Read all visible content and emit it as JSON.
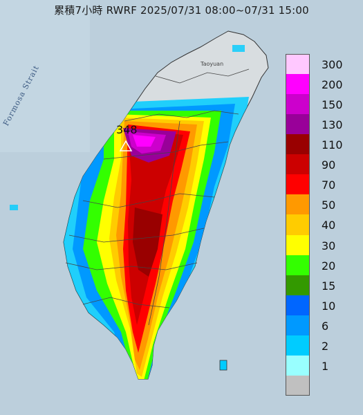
{
  "title": "累積7小時 RWRF 2025/07/31 08:00~07/31 15:00",
  "strait_label": "Formosa Strait",
  "place_label": "Taoyuan",
  "max_value": "348",
  "legend": {
    "items": [
      {
        "label": "300",
        "color": "#ffc8ff"
      },
      {
        "label": "200",
        "color": "#ff00ff"
      },
      {
        "label": "150",
        "color": "#cc00cc"
      },
      {
        "label": "130",
        "color": "#990099"
      },
      {
        "label": "110",
        "color": "#990000"
      },
      {
        "label": "90",
        "color": "#cc0000"
      },
      {
        "label": "70",
        "color": "#ff0000"
      },
      {
        "label": "50",
        "color": "#ff9900"
      },
      {
        "label": "40",
        "color": "#ffcc00"
      },
      {
        "label": "30",
        "color": "#ffff00"
      },
      {
        "label": "20",
        "color": "#33ff00"
      },
      {
        "label": "15",
        "color": "#339900"
      },
      {
        "label": "10",
        "color": "#0066ff"
      },
      {
        "label": "6",
        "color": "#0099ff"
      },
      {
        "label": "2",
        "color": "#00ccff"
      },
      {
        "label": "1",
        "color": "#99ffff"
      },
      {
        "label": "",
        "color": "#c0c0c0"
      }
    ]
  }
}
